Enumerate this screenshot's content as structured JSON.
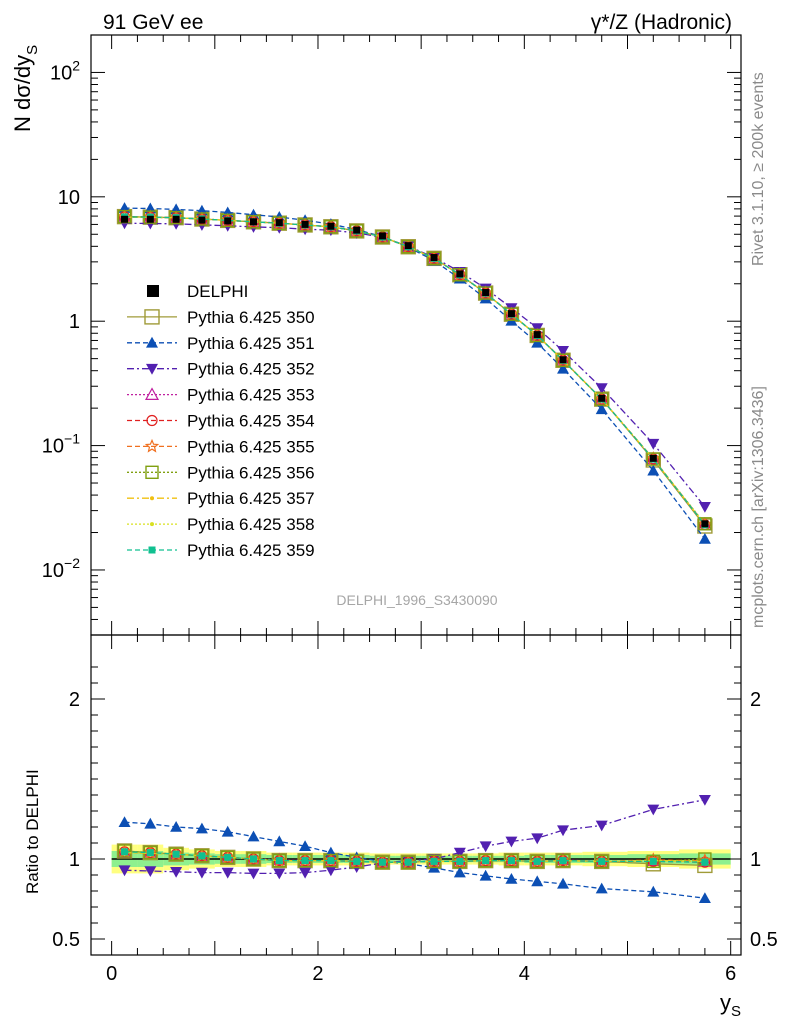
{
  "header": {
    "left": "91 GeV ee",
    "right": "γ*/Z (Hadronic)"
  },
  "side_labels": {
    "top": "Rivet 3.1.10, ≥ 200k events",
    "bottom": "mcplots.cern.ch [arXiv:1306.3436]"
  },
  "watermark": "DELPHI_1996_S3430090",
  "colors": {
    "s350": "#a09b38",
    "s351": "#0c4fb4",
    "s352": "#5220b0",
    "s353": "#c020a0",
    "s354": "#e02020",
    "s355": "#f07020",
    "s356": "#80a010",
    "s357": "#f0c010",
    "s358": "#d8e020",
    "s359": "#10c090",
    "band_inner": "#8ef08e",
    "band_outer": "#ffff80"
  },
  "chart_data": [
    {
      "type": "line",
      "panel": "main",
      "xlabel": "y",
      "xlabel_sub": "S",
      "ylabel": "N dσ/dy",
      "ylabel_sub": "S",
      "yscale": "log",
      "xlim": [
        -0.2,
        6.1
      ],
      "ylim": [
        0.003,
        200
      ],
      "yticks": [
        {
          "value": 0.01,
          "base": "10",
          "exp": "−2"
        },
        {
          "value": 0.1,
          "base": "10",
          "exp": "−1"
        },
        {
          "value": 1,
          "base": "1",
          "exp": ""
        },
        {
          "value": 10,
          "base": "10",
          "exp": ""
        },
        {
          "value": 100,
          "base": "10",
          "exp": "2"
        }
      ],
      "x": [
        0.125,
        0.375,
        0.625,
        0.875,
        1.125,
        1.375,
        1.625,
        1.875,
        2.125,
        2.375,
        2.625,
        2.875,
        3.125,
        3.375,
        3.625,
        3.875,
        4.125,
        4.375,
        4.75,
        5.25,
        5.75
      ],
      "data": {
        "name": "DELPHI",
        "values": [
          6.6,
          6.6,
          6.6,
          6.5,
          6.4,
          6.3,
          6.2,
          6.0,
          5.8,
          5.4,
          4.85,
          4.05,
          3.25,
          2.4,
          1.7,
          1.15,
          0.78,
          0.49,
          0.24,
          0.079,
          0.0235
        ]
      },
      "legend": [
        {
          "key": "data",
          "label": "DELPHI"
        },
        {
          "key": "s350",
          "label": "Pythia 6.425 350"
        },
        {
          "key": "s351",
          "label": "Pythia 6.425 351"
        },
        {
          "key": "s352",
          "label": "Pythia 6.425 352"
        },
        {
          "key": "s353",
          "label": "Pythia 6.425 353"
        },
        {
          "key": "s354",
          "label": "Pythia 6.425 354"
        },
        {
          "key": "s355",
          "label": "Pythia 6.425 355"
        },
        {
          "key": "s356",
          "label": "Pythia 6.425 356"
        },
        {
          "key": "s357",
          "label": "Pythia 6.425 357"
        },
        {
          "key": "s358",
          "label": "Pythia 6.425 358"
        },
        {
          "key": "s359",
          "label": "Pythia 6.425 359"
        }
      ]
    },
    {
      "type": "line",
      "panel": "ratio",
      "ylabel": "Ratio to DELPHI",
      "ylim": [
        0.4,
        2.4
      ],
      "yticks": [
        0.5,
        1,
        2
      ],
      "xticks": [
        0,
        2,
        4,
        6
      ],
      "band_outer": [
        0.09,
        0.09,
        0.07,
        0.06,
        0.05,
        0.05,
        0.04,
        0.04,
        0.04,
        0.04,
        0.035,
        0.035,
        0.035,
        0.035,
        0.035,
        0.04,
        0.04,
        0.04,
        0.045,
        0.05,
        0.06
      ],
      "band_inner": [
        0.05,
        0.05,
        0.04,
        0.035,
        0.03,
        0.03,
        0.025,
        0.025,
        0.025,
        0.025,
        0.02,
        0.02,
        0.02,
        0.02,
        0.02,
        0.02,
        0.025,
        0.025,
        0.025,
        0.03,
        0.035
      ],
      "series": [
        {
          "key": "s350",
          "name": "Pythia 6.425 350",
          "values": [
            1.05,
            1.04,
            1.03,
            1.02,
            1.01,
            1.0,
            0.99,
            0.99,
            0.99,
            0.985,
            0.98,
            0.98,
            0.985,
            0.985,
            0.99,
            0.99,
            0.985,
            0.99,
            0.985,
            0.97,
            0.96
          ]
        },
        {
          "key": "s351",
          "name": "Pythia 6.425 351",
          "values": [
            1.23,
            1.22,
            1.2,
            1.19,
            1.17,
            1.14,
            1.11,
            1.08,
            1.04,
            1.01,
            0.985,
            0.97,
            0.945,
            0.915,
            0.895,
            0.875,
            0.86,
            0.845,
            0.815,
            0.795,
            0.755
          ]
        },
        {
          "key": "s352",
          "name": "Pythia 6.425 352",
          "values": [
            0.93,
            0.925,
            0.92,
            0.915,
            0.915,
            0.91,
            0.91,
            0.915,
            0.93,
            0.95,
            0.975,
            0.99,
            1.0,
            1.04,
            1.08,
            1.11,
            1.13,
            1.18,
            1.21,
            1.31,
            1.37
          ]
        },
        {
          "key": "s353",
          "name": "Pythia 6.425 353",
          "values": [
            1.04,
            1.035,
            1.03,
            1.02,
            1.01,
            1.0,
            0.995,
            0.99,
            0.99,
            0.985,
            0.98,
            0.98,
            0.985,
            0.985,
            0.99,
            0.99,
            0.985,
            0.995,
            0.985,
            0.99,
            0.985
          ]
        },
        {
          "key": "s354",
          "name": "Pythia 6.425 354",
          "values": [
            1.045,
            1.04,
            1.03,
            1.02,
            1.01,
            1.0,
            0.99,
            0.99,
            0.99,
            0.985,
            0.98,
            0.98,
            0.985,
            0.985,
            0.99,
            0.99,
            0.985,
            0.99,
            0.985,
            0.985,
            0.98
          ]
        },
        {
          "key": "s355",
          "name": "Pythia 6.425 355",
          "values": [
            1.045,
            1.04,
            1.03,
            1.02,
            1.01,
            1.0,
            0.99,
            0.99,
            0.99,
            0.985,
            0.98,
            0.98,
            0.985,
            0.985,
            0.99,
            0.99,
            0.985,
            0.99,
            0.985,
            0.995,
            0.99
          ]
        },
        {
          "key": "s356",
          "name": "Pythia 6.425 356",
          "values": [
            1.05,
            1.04,
            1.03,
            1.02,
            1.01,
            1.0,
            0.99,
            0.99,
            0.99,
            0.985,
            0.98,
            0.98,
            0.985,
            0.985,
            0.99,
            0.99,
            0.985,
            0.99,
            0.985,
            0.985,
            1.0
          ]
        },
        {
          "key": "s357",
          "name": "Pythia 6.425 357",
          "values": [
            1.04,
            1.035,
            1.03,
            1.02,
            1.01,
            1.0,
            0.99,
            0.99,
            0.99,
            0.985,
            0.98,
            0.98,
            0.985,
            0.985,
            0.99,
            0.99,
            0.985,
            0.99,
            0.985,
            0.99,
            0.985
          ]
        },
        {
          "key": "s358",
          "name": "Pythia 6.425 358",
          "values": [
            1.04,
            1.035,
            1.03,
            1.02,
            1.01,
            1.0,
            0.99,
            0.99,
            0.99,
            0.985,
            0.98,
            0.98,
            0.985,
            0.985,
            0.99,
            0.99,
            0.985,
            0.99,
            0.985,
            0.99,
            0.985
          ]
        },
        {
          "key": "s359",
          "name": "Pythia 6.425 359",
          "values": [
            1.045,
            1.04,
            1.03,
            1.02,
            1.01,
            1.0,
            0.99,
            0.99,
            0.99,
            0.985,
            0.98,
            0.98,
            0.985,
            0.985,
            0.99,
            0.99,
            0.985,
            0.99,
            0.985,
            0.985,
            0.98
          ]
        }
      ]
    }
  ]
}
